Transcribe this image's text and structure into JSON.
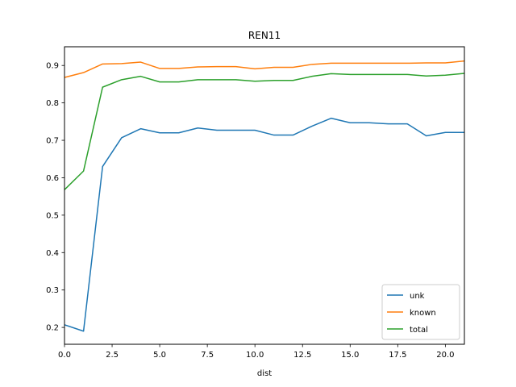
{
  "chart_data": {
    "type": "line",
    "title": "REN11",
    "xlabel": "dist",
    "ylabel": "",
    "xlim": [
      0,
      21
    ],
    "ylim": [
      0.155,
      0.95
    ],
    "x_ticks": [
      0,
      2.5,
      5,
      7.5,
      10,
      12.5,
      15,
      17.5,
      20
    ],
    "x_tick_labels": [
      "0.0",
      "2.5",
      "5.0",
      "7.5",
      "10.0",
      "12.5",
      "15.0",
      "17.5",
      "20.0"
    ],
    "y_ticks": [
      0.2,
      0.3,
      0.4,
      0.5,
      0.6,
      0.7,
      0.8,
      0.9
    ],
    "y_tick_labels": [
      "0.2",
      "0.3",
      "0.4",
      "0.5",
      "0.6",
      "0.7",
      "0.8",
      "0.9"
    ],
    "grid": false,
    "legend_position": "lower-right",
    "x": [
      0,
      1,
      2,
      3,
      4,
      5,
      6,
      7,
      8,
      9,
      10,
      11,
      12,
      13,
      14,
      15,
      16,
      17,
      18,
      19,
      20,
      21
    ],
    "series": [
      {
        "name": "unk",
        "color": "#1f77b4",
        "values": [
          0.207,
          0.19,
          0.63,
          0.707,
          0.731,
          0.72,
          0.72,
          0.733,
          0.727,
          0.727,
          0.727,
          0.714,
          0.714,
          0.738,
          0.759,
          0.747,
          0.747,
          0.744,
          0.744,
          0.712,
          0.721,
          0.721
        ]
      },
      {
        "name": "known",
        "color": "#ff7f0e",
        "values": [
          0.868,
          0.881,
          0.904,
          0.905,
          0.909,
          0.892,
          0.892,
          0.896,
          0.897,
          0.897,
          0.891,
          0.895,
          0.895,
          0.903,
          0.906,
          0.906,
          0.906,
          0.906,
          0.906,
          0.907,
          0.907,
          0.912
        ]
      },
      {
        "name": "total",
        "color": "#2ca02c",
        "values": [
          0.568,
          0.618,
          0.842,
          0.862,
          0.871,
          0.856,
          0.856,
          0.862,
          0.862,
          0.862,
          0.858,
          0.86,
          0.86,
          0.871,
          0.878,
          0.876,
          0.876,
          0.876,
          0.876,
          0.872,
          0.874,
          0.879
        ]
      }
    ]
  }
}
